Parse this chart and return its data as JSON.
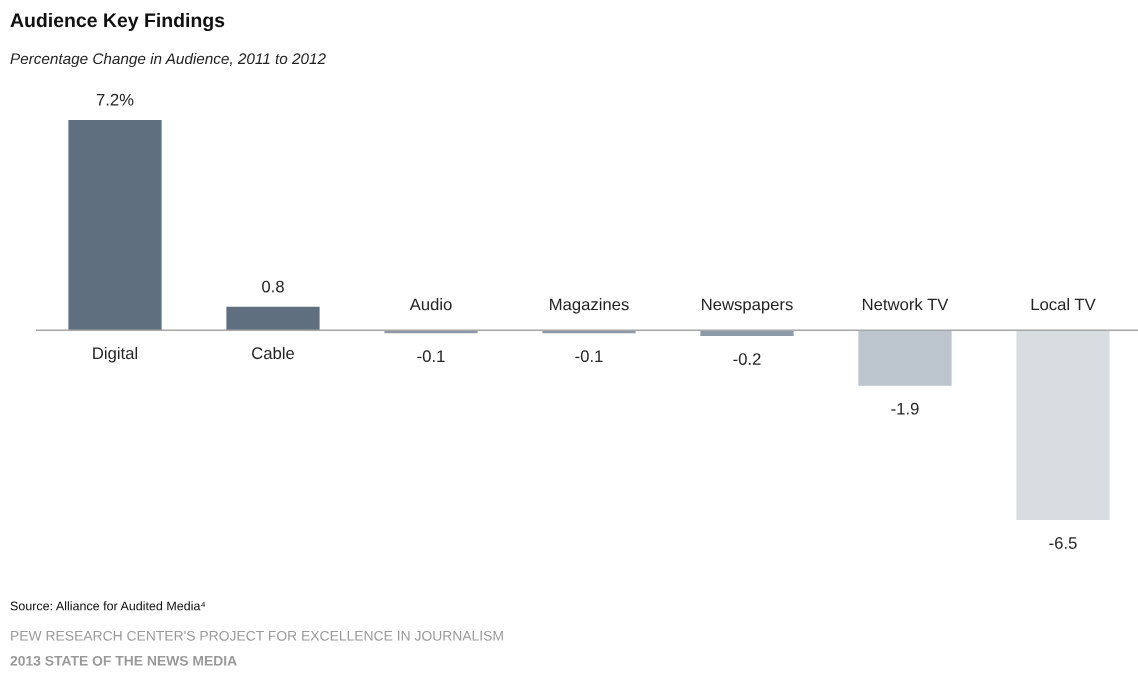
{
  "chart_data": {
    "type": "bar",
    "title": "Audience Key Findings",
    "subtitle": "Percentage Change in Audience, 2011 to 2012",
    "categories": [
      "Digital",
      "Cable",
      "Audio",
      "Magazines",
      "Newspapers",
      "Network TV",
      "Local TV"
    ],
    "values": [
      7.2,
      0.8,
      -0.1,
      -0.1,
      -0.2,
      -1.9,
      -6.5
    ],
    "value_labels": [
      "7.2%",
      "0.8",
      "-0.1",
      "-0.1",
      "-0.2",
      "-1.9",
      "-6.5"
    ],
    "colors": [
      "#5f6f80",
      "#5f6f80",
      "#8c99a8",
      "#8c99a8",
      "#8c99a8",
      "#bcc4cd",
      "#d8dde2"
    ],
    "annotations": [
      "Source: Alliance for Audited Media⁴",
      "PEW RESEARCH CENTER'S PROJECT FOR EXCELLENCE IN JOURNALISM",
      "2013 STATE OF THE NEWS MEDIA"
    ]
  }
}
